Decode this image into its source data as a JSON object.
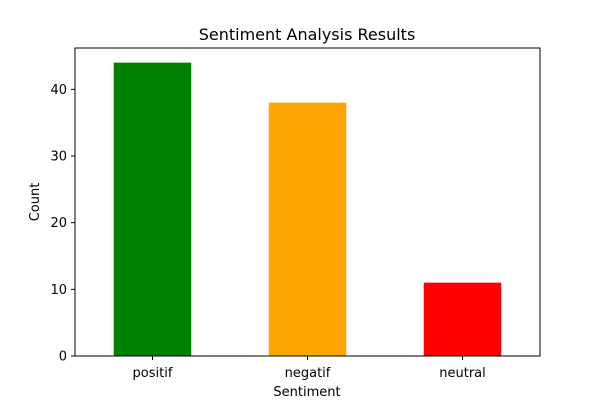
{
  "chart_data": {
    "type": "bar",
    "title": "Sentiment Analysis Results",
    "xlabel": "Sentiment",
    "ylabel": "Count",
    "categories": [
      "positif",
      "negatif",
      "neutral"
    ],
    "values": [
      44,
      38,
      11
    ],
    "colors": [
      "#008000",
      "#ffa500",
      "#ff0000"
    ],
    "ylim": [
      0,
      46.2
    ],
    "yticks": [
      0,
      10,
      20,
      30,
      40
    ],
    "grid": false,
    "legend": "none"
  }
}
